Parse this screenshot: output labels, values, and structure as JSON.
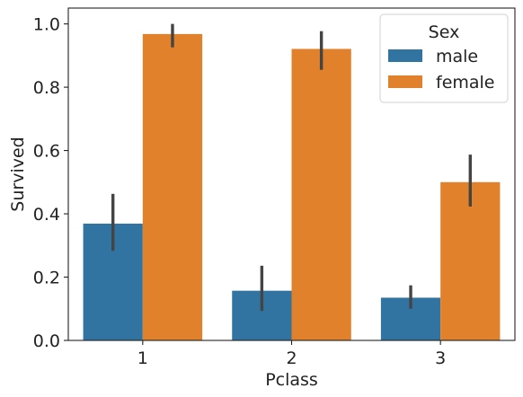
{
  "chart_data": {
    "type": "bar",
    "categories": [
      "1",
      "2",
      "3"
    ],
    "series": [
      {
        "name": "male",
        "color": "#3274a1",
        "values": [
          0.369,
          0.157,
          0.135
        ],
        "ci_low": [
          0.283,
          0.093,
          0.1
        ],
        "ci_high": [
          0.463,
          0.236,
          0.174
        ]
      },
      {
        "name": "female",
        "color": "#e1812c",
        "values": [
          0.968,
          0.921,
          0.5
        ],
        "ci_low": [
          0.926,
          0.855,
          0.423
        ],
        "ci_high": [
          1.0,
          0.977,
          0.587
        ]
      }
    ],
    "xlabel": "Pclass",
    "ylabel": "Survived",
    "ylim": [
      0.0,
      1.05
    ],
    "yticks": [
      "0.0",
      "0.2",
      "0.4",
      "0.6",
      "0.8",
      "1.0"
    ],
    "grid": false,
    "legend": {
      "title": "Sex",
      "placement": "top-right",
      "entries": [
        "male",
        "female"
      ]
    }
  }
}
